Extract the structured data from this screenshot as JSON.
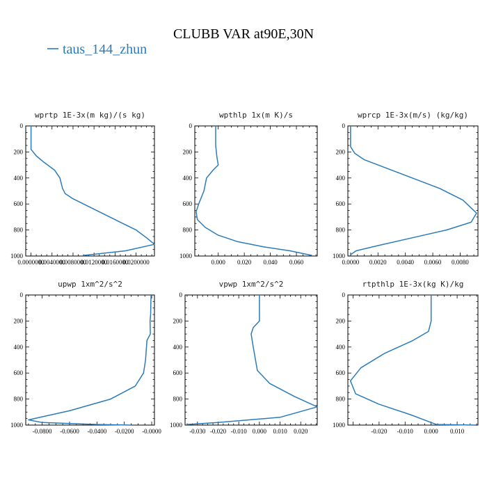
{
  "figure": {
    "title": "CLUBB VAR at90E,30N",
    "legend": {
      "label": "taus_144_zhun",
      "color": "#2b7bba"
    }
  },
  "chart_data": [
    {
      "type": "line",
      "title": "wprtp   1E-3x(m kg)/(s kg)",
      "xlim": [
        -0.001,
        0.0235
      ],
      "ylim": [
        1000,
        0
      ],
      "xticks": [
        0.0,
        0.004,
        0.008,
        0.012,
        0.016,
        0.02
      ],
      "xtick_labels": [
        "0.0000000",
        "0.0040000",
        "0.0080000",
        "0.0120000",
        "0.0160000",
        "0.0200000"
      ],
      "yticks": [
        0,
        200,
        400,
        600,
        800,
        1000
      ],
      "series": [
        {
          "x": [
            0.0,
            0.0,
            0.001,
            0.0025,
            0.0045,
            0.0055,
            0.006,
            0.0065,
            0.008,
            0.011,
            0.014,
            0.017,
            0.02,
            0.022,
            0.0235,
            0.018,
            0.01
          ],
          "y": [
            0,
            180,
            230,
            280,
            340,
            400,
            480,
            520,
            560,
            620,
            680,
            740,
            800,
            860,
            910,
            960,
            995
          ]
        }
      ]
    },
    {
      "type": "line",
      "title": "wpthlp   1x(m K)/s",
      "xlim": [
        -0.018,
        0.076
      ],
      "ylim": [
        1000,
        0
      ],
      "xticks": [
        0.0,
        0.02,
        0.04,
        0.06
      ],
      "xtick_labels": [
        "0.000",
        "0.020",
        "0.040",
        "0.060"
      ],
      "yticks": [
        0,
        200,
        400,
        600,
        800,
        1000
      ],
      "series": [
        {
          "x": [
            -0.002,
            -0.002,
            -0.001,
            0.0,
            -0.004,
            -0.009,
            -0.011,
            -0.015,
            -0.017,
            -0.016,
            -0.01,
            0.0,
            0.015,
            0.035,
            0.055,
            0.072
          ],
          "y": [
            0,
            150,
            240,
            300,
            340,
            400,
            500,
            600,
            660,
            720,
            780,
            840,
            890,
            930,
            960,
            995
          ]
        }
      ]
    },
    {
      "type": "line",
      "title": "wprcp   1E-3x(m/s) (kg/kg)",
      "xlim": [
        -0.0002,
        0.0093
      ],
      "ylim": [
        1000,
        0
      ],
      "xticks": [
        0.0,
        0.002,
        0.004,
        0.006,
        0.008
      ],
      "xtick_labels": [
        "0.0000",
        "0.0020",
        "0.0040",
        "0.0060",
        "0.0080"
      ],
      "yticks": [
        0,
        200,
        400,
        600,
        800,
        1000
      ],
      "series": [
        {
          "x": [
            0.0,
            0.0,
            0.0003,
            0.001,
            0.0025,
            0.0045,
            0.0065,
            0.0082,
            0.0092,
            0.0088,
            0.007,
            0.0045,
            0.002,
            0.0004,
            0.0
          ],
          "y": [
            0,
            160,
            210,
            260,
            320,
            400,
            480,
            570,
            670,
            740,
            800,
            860,
            920,
            960,
            990
          ]
        }
      ]
    },
    {
      "type": "line",
      "title": "upwp   1xm^2/s^2",
      "xlim": [
        -0.092,
        0.002
      ],
      "ylim": [
        1000,
        0
      ],
      "xticks": [
        -0.08,
        -0.06,
        -0.04,
        -0.02,
        0.0
      ],
      "xtick_labels": [
        "-0.0800",
        "-0.0600",
        "-0.0400",
        "-0.0200",
        "-0.0000"
      ],
      "yticks": [
        0,
        200,
        400,
        600,
        800,
        1000
      ],
      "series": [
        {
          "x": [
            -0.0005,
            -0.0008,
            -0.0012,
            -0.001,
            -0.0035,
            -0.0045,
            -0.006,
            -0.012,
            -0.03,
            -0.06,
            -0.09,
            -0.08,
            -0.04,
            -0.015
          ],
          "y": [
            0,
            150,
            200,
            300,
            350,
            500,
            600,
            700,
            800,
            890,
            960,
            980,
            995,
            1000
          ]
        }
      ]
    },
    {
      "type": "line",
      "title": "vpwp   1xm^2/s^2",
      "xlim": [
        -0.036,
        0.028
      ],
      "ylim": [
        1000,
        0
      ],
      "xticks": [
        -0.03,
        -0.02,
        -0.01,
        0.0,
        0.01,
        0.02
      ],
      "xtick_labels": [
        "-0.030",
        "-0.020",
        "-0.010",
        "0.000",
        "0.010",
        "0.020"
      ],
      "yticks": [
        0,
        200,
        400,
        600,
        800,
        1000
      ],
      "series": [
        {
          "x": [
            0.0,
            0.0,
            -0.003,
            -0.004,
            -0.003,
            -0.001,
            0.005,
            0.017,
            0.028,
            0.01,
            -0.02,
            -0.035
          ],
          "y": [
            0,
            200,
            250,
            300,
            400,
            580,
            680,
            780,
            860,
            940,
            980,
            995
          ]
        }
      ]
    },
    {
      "type": "line",
      "title": "rtpthlp   1E-3x(kg K)/kg",
      "xlim": [
        -0.032,
        0.018
      ],
      "ylim": [
        1000,
        0
      ],
      "xticks": [
        -0.02,
        -0.01,
        0.0,
        0.01
      ],
      "xtick_labels": [
        "-0.020",
        "-0.010",
        "0.000",
        "0.010"
      ],
      "yticks": [
        0,
        200,
        400,
        600,
        800,
        1000
      ],
      "series": [
        {
          "x": [
            0.0,
            0.0,
            -0.001,
            -0.007,
            -0.018,
            -0.027,
            -0.031,
            -0.029,
            -0.02,
            -0.008,
            0.0,
            0.002,
            0.017
          ],
          "y": [
            0,
            200,
            280,
            350,
            450,
            560,
            660,
            760,
            840,
            920,
            980,
            995,
            1000
          ]
        }
      ]
    }
  ]
}
